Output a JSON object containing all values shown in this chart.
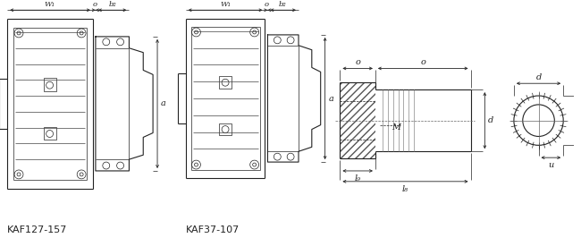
{
  "bg_color": "#ffffff",
  "line_color": "#222222",
  "label1": "KAF127-157",
  "label2": "KAF37-107",
  "dim_labels": {
    "W1": "W₁",
    "o": "o",
    "b2": "b₂",
    "a": "a",
    "d": "d",
    "l9": "l₉",
    "l8": "l₈",
    "u": "u",
    "M": "M",
    "l": "l"
  },
  "font_size_label": 8,
  "font_size_dim": 7,
  "fig_width": 6.5,
  "fig_height": 2.66,
  "dpi": 100
}
